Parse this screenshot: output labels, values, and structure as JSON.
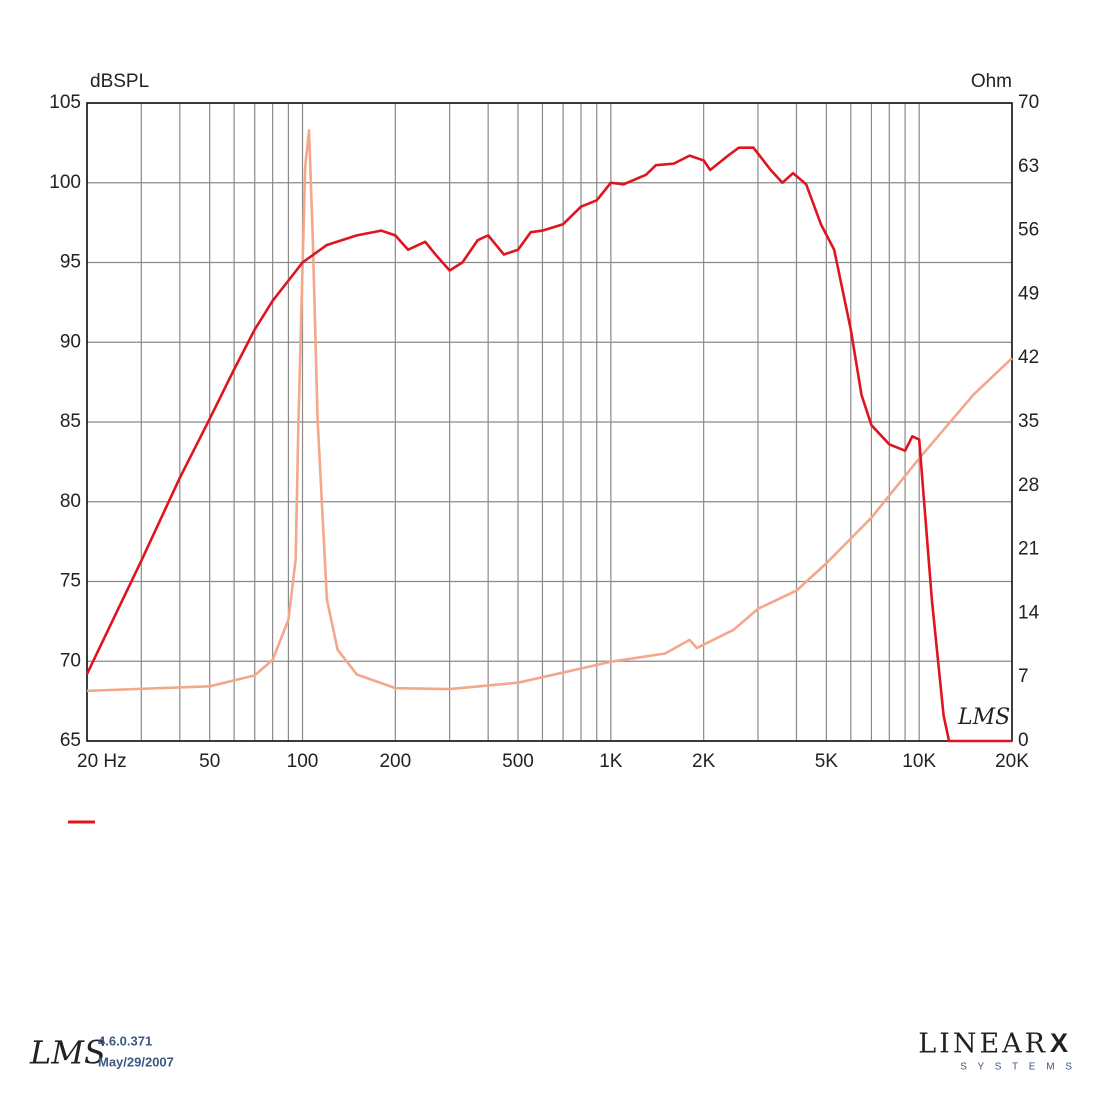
{
  "chart_data": {
    "type": "line",
    "y_label": "dBSPL",
    "y2_label": "Ohm",
    "xscale": "log",
    "grid": true,
    "xlim": [
      20,
      20000
    ],
    "ylim": [
      65,
      105
    ],
    "y2lim": [
      0,
      70
    ],
    "xticks": [
      {
        "value": 20,
        "label": "20 Hz"
      },
      50,
      100,
      200,
      500,
      {
        "value": 1000,
        "label": "1K"
      },
      {
        "value": 2000,
        "label": "2K"
      },
      {
        "value": 5000,
        "label": "5K"
      },
      {
        "value": 10000,
        "label": "10K"
      },
      {
        "value": 20000,
        "label": "20K"
      }
    ],
    "xminorticks": [
      30,
      40,
      60,
      70,
      80,
      90,
      300,
      400,
      600,
      700,
      800,
      900,
      3000,
      4000,
      6000,
      7000,
      8000,
      9000
    ],
    "yticks": [
      65,
      70,
      75,
      80,
      85,
      90,
      95,
      100,
      105
    ],
    "y2ticks": [
      0,
      7,
      14,
      21,
      28,
      35,
      42,
      49,
      56,
      63,
      70
    ],
    "watermark": "LMS",
    "series": [
      {
        "color": "#e0141e",
        "x": [
          20,
          30,
          40,
          50,
          60,
          70,
          80,
          100,
          120,
          150,
          180,
          200,
          220,
          250,
          270,
          300,
          330,
          370,
          400,
          450,
          500,
          550,
          600,
          700,
          800,
          900,
          1000,
          1100,
          1300,
          1400,
          1600,
          1800,
          2000,
          2100,
          2400,
          2600,
          2900,
          3300,
          3600,
          3900,
          4300,
          4800,
          5300,
          6000,
          6500,
          7000,
          8000,
          9000,
          9500,
          10000,
          11000,
          12000,
          12500,
          20000
        ],
        "values": [
          69.2,
          76.3,
          81.5,
          85.2,
          88.3,
          90.8,
          92.6,
          95.0,
          96.1,
          96.7,
          97.0,
          96.7,
          95.8,
          96.3,
          95.5,
          94.5,
          95.0,
          96.4,
          96.7,
          95.5,
          95.8,
          96.9,
          97.0,
          97.4,
          98.5,
          98.9,
          100.0,
          99.9,
          100.5,
          101.1,
          101.2,
          101.7,
          101.4,
          100.8,
          101.7,
          102.2,
          102.2,
          100.8,
          100.0,
          100.6,
          99.9,
          97.4,
          95.8,
          90.8,
          86.7,
          84.8,
          83.6,
          83.2,
          84.1,
          83.9,
          73.8,
          66.6,
          65.0,
          65.0
        ]
      },
      {
        "color": "#f4a78a",
        "axis": "y2",
        "x": [
          20,
          50,
          70,
          80,
          90,
          95,
          97,
          102,
          105,
          108,
          112,
          120,
          130,
          150,
          200,
          300,
          500,
          1000,
          1500,
          1800,
          1900,
          2500,
          3000,
          4000,
          5000,
          7000,
          10000,
          15000,
          20000
        ],
        "values": [
          5.5,
          6.0,
          7.2,
          8.9,
          13.3,
          19.9,
          35,
          63,
          67,
          55,
          35,
          15.5,
          10,
          7.3,
          5.8,
          5.7,
          6.4,
          8.7,
          9.6,
          11.1,
          10.2,
          12.2,
          14.5,
          16.5,
          19.5,
          24.5,
          31,
          38,
          42
        ]
      }
    ]
  },
  "footer": {
    "logo": "LMS",
    "version": "4.6.0.371",
    "date": "May/29/2007",
    "brand": "LINEAR",
    "brand_mark": "X",
    "brand_sub": "S Y S T E M S"
  }
}
